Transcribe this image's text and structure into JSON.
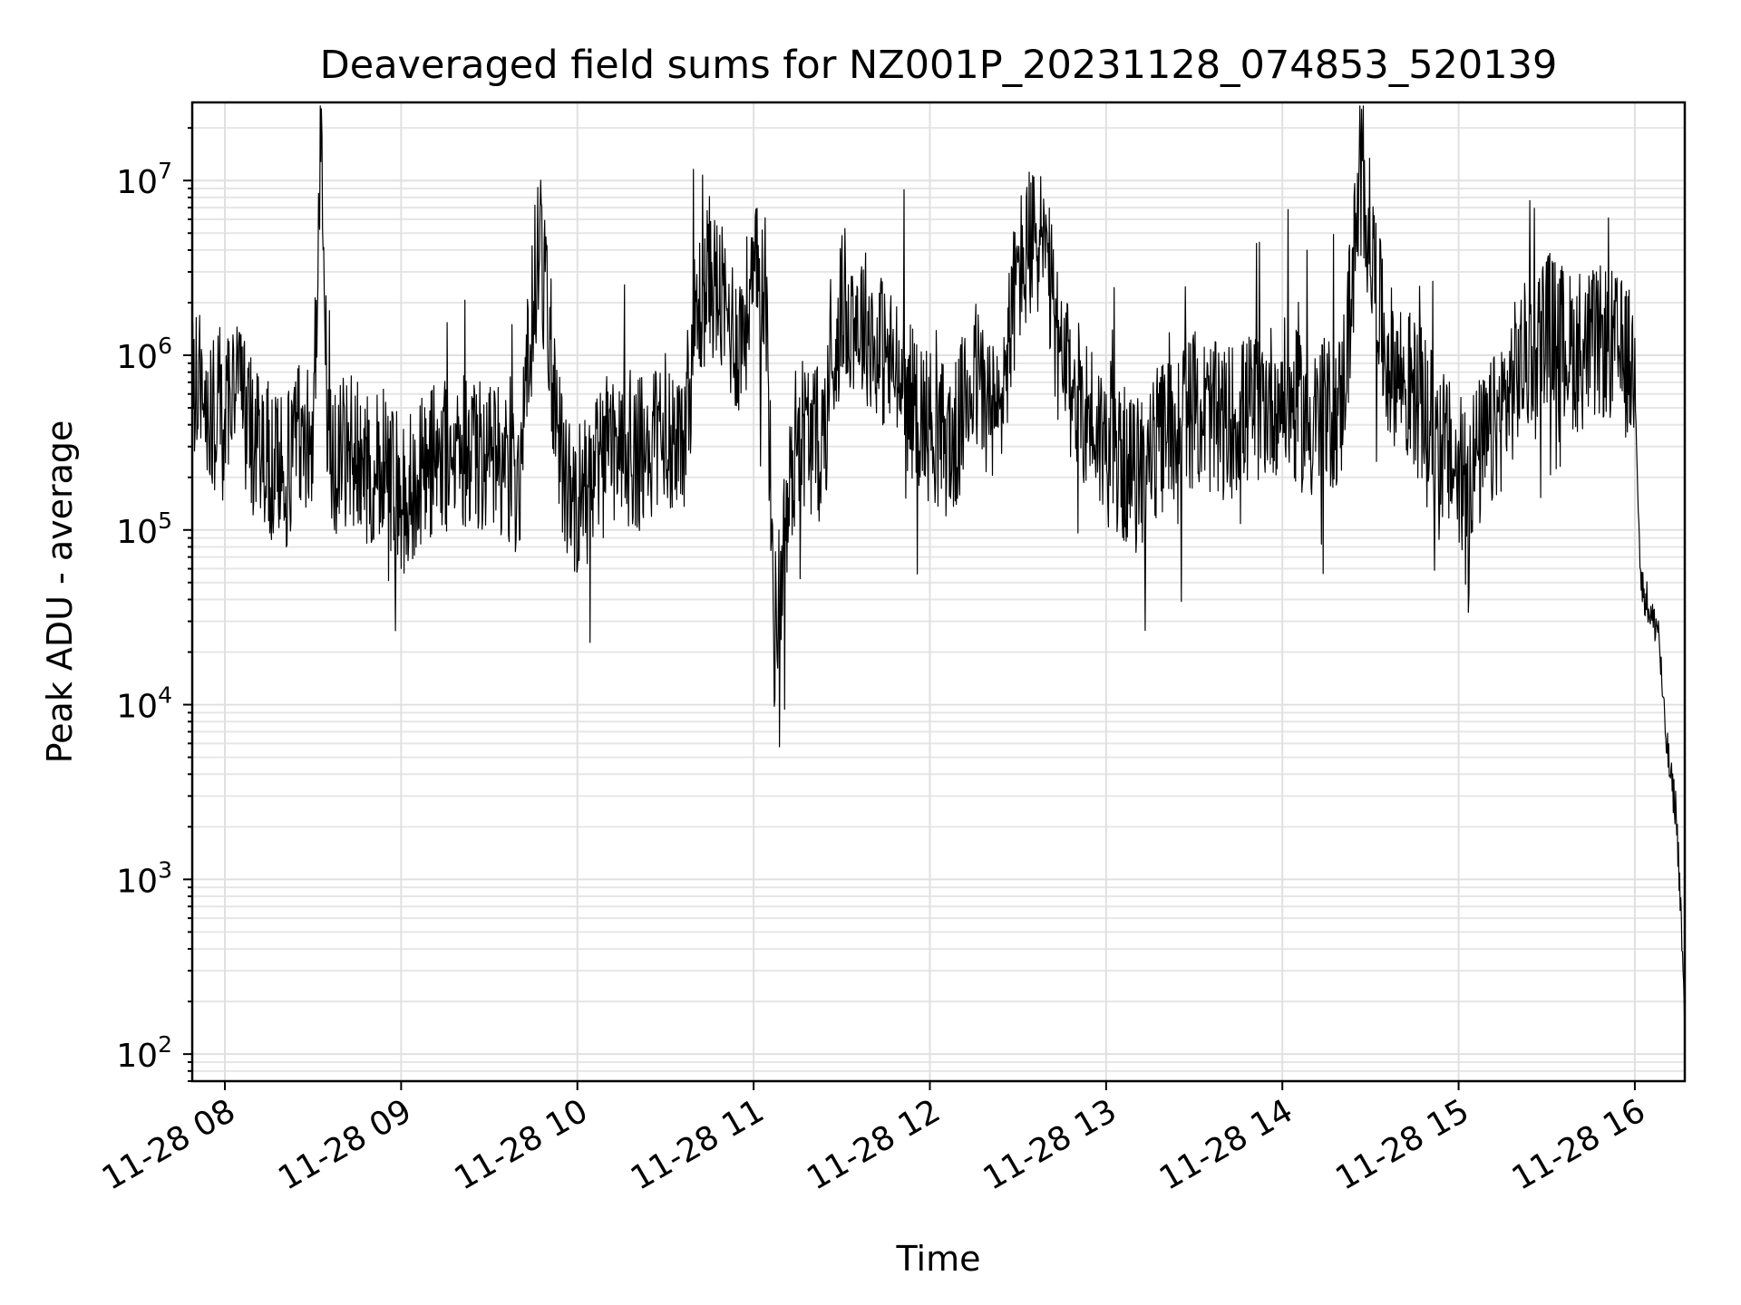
{
  "chart_data": {
    "type": "line",
    "title": "Deaveraged field sums for NZ001P_20231128_074853_520139",
    "xlabel": "Time",
    "ylabel": "Peak ADU - average",
    "yscale": "log",
    "ylim": [
      70,
      28000000
    ],
    "xlim": [
      "2023-11-28 07:48:53",
      "2023-11-28 16:17:00"
    ],
    "grid": "on (major and minor)",
    "x_ticks": [
      "2023-11-28 08:00",
      "2023-11-28 09:00",
      "2023-11-28 10:00",
      "2023-11-28 11:00",
      "2023-11-28 12:00",
      "2023-11-28 13:00",
      "2023-11-28 14:00",
      "2023-11-28 15:00",
      "2023-11-28 16:00"
    ],
    "x_tick_labels": [
      "11-28 08",
      "11-28 09",
      "11-28 10",
      "11-28 11",
      "11-28 12",
      "11-28 13",
      "11-28 14",
      "11-28 15",
      "11-28 16"
    ],
    "y_ticks": [
      {
        "value": 100,
        "base": "10",
        "exp": "2"
      },
      {
        "value": 1000,
        "base": "10",
        "exp": "3"
      },
      {
        "value": 10000,
        "base": "10",
        "exp": "4"
      },
      {
        "value": 100000,
        "base": "10",
        "exp": "5"
      },
      {
        "value": 1000000,
        "base": "10",
        "exp": "6"
      },
      {
        "value": 10000000,
        "base": "10",
        "exp": "7"
      }
    ],
    "series": [
      {
        "color": "#000000",
        "x": [
          "2023-11-28 07:48:53",
          "2023-11-28 07:52:00",
          "2023-11-28 07:55:00",
          "2023-11-28 07:58:00",
          "2023-11-28 08:00:00",
          "2023-11-28 08:03:00",
          "2023-11-28 08:06:00",
          "2023-11-28 08:10:00",
          "2023-11-28 08:15:00",
          "2023-11-28 08:20:00",
          "2023-11-28 08:25:00",
          "2023-11-28 08:30:00",
          "2023-11-28 08:33:00",
          "2023-11-28 08:35:00",
          "2023-11-28 08:38:00",
          "2023-11-28 08:45:00",
          "2023-11-28 08:50:00",
          "2023-11-28 08:55:00",
          "2023-11-28 09:00:00",
          "2023-11-28 09:10:00",
          "2023-11-28 09:20:00",
          "2023-11-28 09:30:00",
          "2023-11-28 09:40:00",
          "2023-11-28 09:47:00",
          "2023-11-28 09:55:00",
          "2023-11-28 10:00:00",
          "2023-11-28 10:10:00",
          "2023-11-28 10:17:00",
          "2023-11-28 10:25:00",
          "2023-11-28 10:30:00",
          "2023-11-28 10:35:00",
          "2023-11-28 10:40:00",
          "2023-11-28 10:45:00",
          "2023-11-28 10:50:00",
          "2023-11-28 10:55:00",
          "2023-11-28 11:00:00",
          "2023-11-28 11:04:00",
          "2023-11-28 11:07:00",
          "2023-11-28 11:15:00",
          "2023-11-28 11:23:00",
          "2023-11-28 11:30:00",
          "2023-11-28 11:38:00",
          "2023-11-28 11:45:00",
          "2023-11-28 11:52:00",
          "2023-11-28 12:00:00",
          "2023-11-28 12:08:00",
          "2023-11-28 12:15:00",
          "2023-11-28 12:23:00",
          "2023-11-28 12:30:00",
          "2023-11-28 12:38:00",
          "2023-11-28 12:45:00",
          "2023-11-28 12:53:00",
          "2023-11-28 13:00:00",
          "2023-11-28 13:10:00",
          "2023-11-28 13:20:00",
          "2023-11-28 13:30:00",
          "2023-11-28 13:40:00",
          "2023-11-28 13:50:00",
          "2023-11-28 14:00:00",
          "2023-11-28 14:10:00",
          "2023-11-28 14:20:00",
          "2023-11-28 14:27:00",
          "2023-11-28 14:35:00",
          "2023-11-28 14:45:00",
          "2023-11-28 14:55:00",
          "2023-11-28 15:00:00",
          "2023-11-28 15:10:00",
          "2023-11-28 15:20:00",
          "2023-11-28 15:30:00",
          "2023-11-28 15:40:00",
          "2023-11-28 15:50:00",
          "2023-11-28 15:55:00",
          "2023-11-28 16:00:00",
          "2023-11-28 16:02:00",
          "2023-11-28 16:04:00",
          "2023-11-28 16:06:00",
          "2023-11-28 16:08:00",
          "2023-11-28 16:10:00",
          "2023-11-28 16:12:00",
          "2023-11-28 16:14:00",
          "2023-11-28 16:15:30",
          "2023-11-28 16:16:30",
          "2023-11-28 16:17:00"
        ],
        "y": [
          600000,
          700000,
          400000,
          550000,
          350000,
          900000,
          500000,
          300000,
          250000,
          200000,
          350000,
          400000,
          15000000,
          300000,
          250000,
          300000,
          200000,
          250000,
          150000,
          250000,
          300000,
          250000,
          200000,
          5000000,
          200000,
          150000,
          250000,
          300000,
          250000,
          400000,
          300000,
          1500000,
          3000000,
          1800000,
          1200000,
          2500000,
          3000000,
          25000,
          400000,
          300000,
          2000000,
          1500000,
          1000000,
          600000,
          400000,
          300000,
          800000,
          400000,
          3000000,
          5000000,
          800000,
          500000,
          300000,
          200000,
          350000,
          500000,
          400000,
          500000,
          600000,
          400000,
          500000,
          11000000,
          1000000,
          600000,
          300000,
          200000,
          300000,
          800000,
          1500000,
          1000000,
          1200000,
          1000000,
          800000,
          50000,
          40000,
          30000,
          28000,
          8000,
          4000,
          2500,
          800,
          250,
          130
        ],
        "noise_amplitude_decades": 0.45
      }
    ]
  }
}
